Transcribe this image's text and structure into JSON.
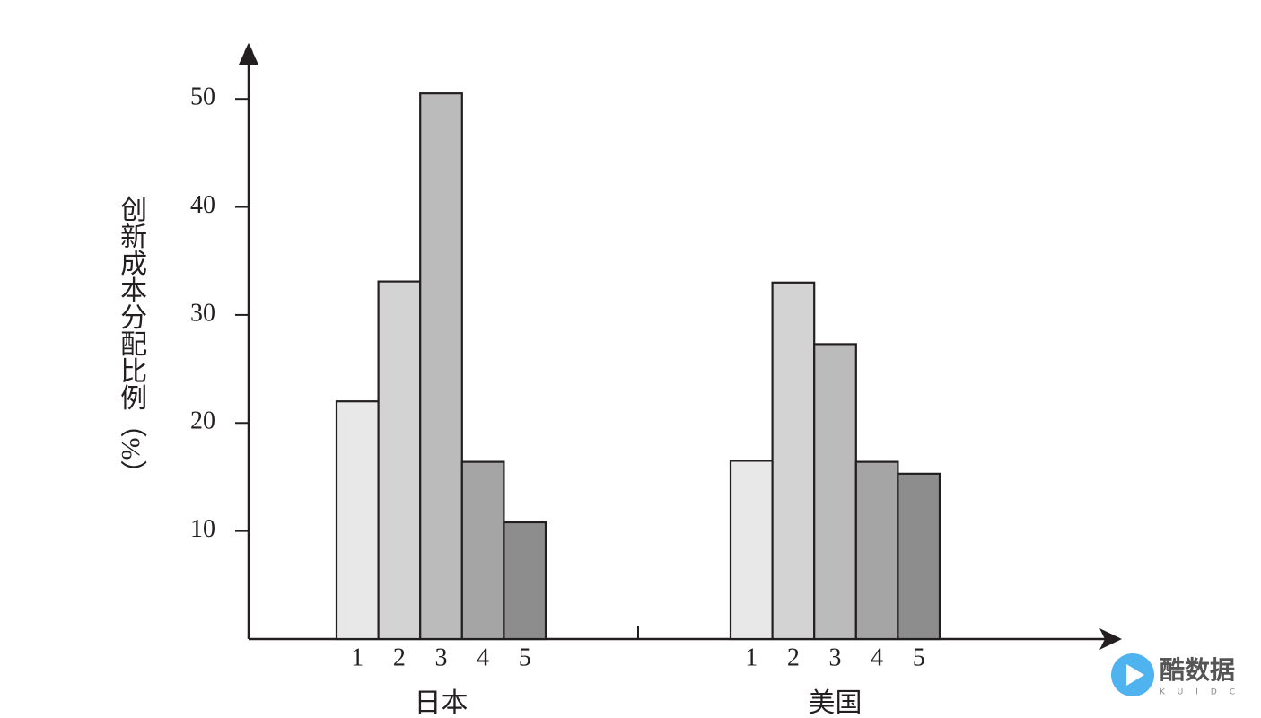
{
  "chart_data": {
    "type": "bar",
    "y_label": "创新成本分配比例（%）",
    "categories": [
      "日本",
      "美国"
    ],
    "series": [
      {
        "name": "1",
        "color": "#e8e8e8",
        "values": [
          22.0,
          16.5
        ]
      },
      {
        "name": "2",
        "color": "#d3d3d3",
        "values": [
          33.1,
          33.0
        ]
      },
      {
        "name": "3",
        "color": "#bcbbbc",
        "values": [
          50.5,
          27.3
        ]
      },
      {
        "name": "4",
        "color": "#a6a5a6",
        "values": [
          16.4,
          16.4
        ]
      },
      {
        "name": "5",
        "color": "#8e8d8e",
        "values": [
          10.8,
          15.3
        ]
      }
    ],
    "ylim": [
      0,
      55
    ],
    "yticks": [
      10,
      20,
      30,
      40,
      50
    ]
  },
  "watermark": {
    "text": "酷数据",
    "sub": "KUIDC"
  }
}
